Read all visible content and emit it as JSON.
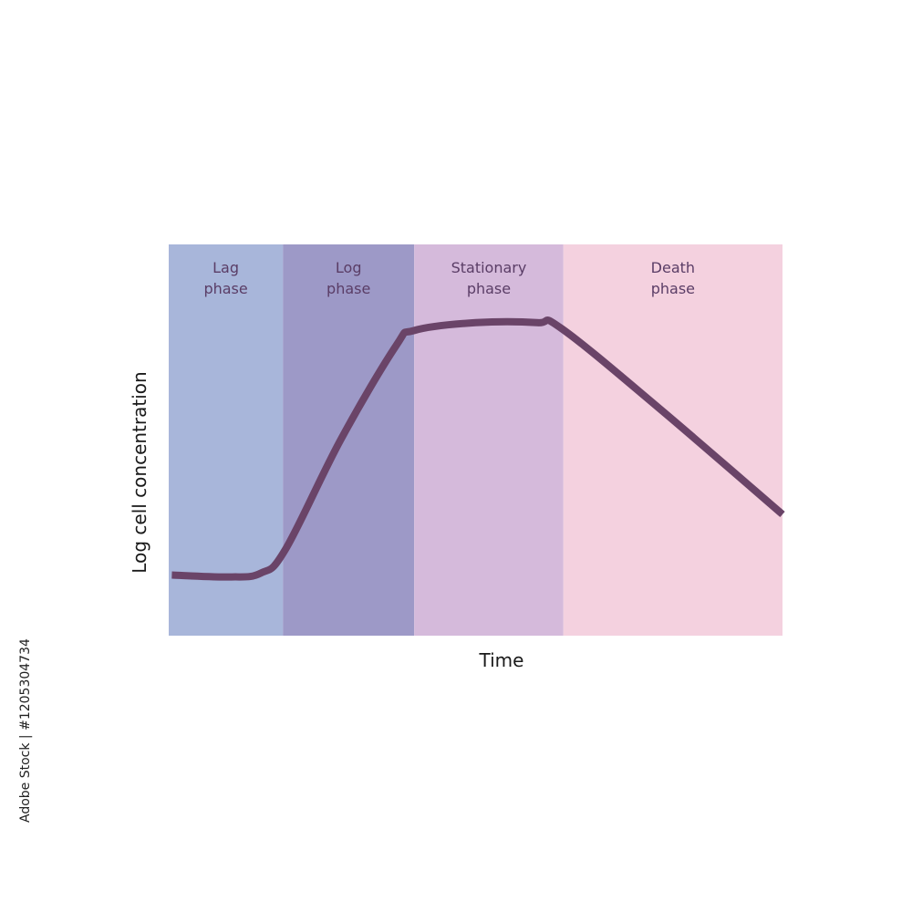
{
  "chart_data": {
    "type": "line",
    "xlabel": "Time",
    "ylabel": "Log cell concentration",
    "xlim": [
      0,
      10
    ],
    "ylim": [
      0,
      10
    ],
    "phases": [
      {
        "line1": "Lag",
        "line2": "phase",
        "x_start": 0,
        "x_end": 1.86,
        "color": "#a8b6da"
      },
      {
        "line1": "Log",
        "line2": "phase",
        "x_start": 1.86,
        "x_end": 4.0,
        "color": "#9d99c7"
      },
      {
        "line1": "Stationary",
        "line2": "phase",
        "x_start": 4.0,
        "x_end": 6.43,
        "color": "#d5badb"
      },
      {
        "line1": "Death",
        "line2": "phase",
        "x_start": 6.43,
        "x_end": 10,
        "color": "#f4d1df"
      }
    ],
    "series": [
      {
        "color": "#6a4468",
        "points": [
          [
            0.05,
            1.55
          ],
          [
            1.0,
            1.5
          ],
          [
            1.5,
            1.6
          ],
          [
            1.9,
            2.2
          ],
          [
            2.8,
            5.0
          ],
          [
            3.7,
            7.4
          ],
          [
            4.0,
            7.8
          ],
          [
            5.0,
            8.0
          ],
          [
            6.0,
            8.0
          ],
          [
            6.4,
            7.85
          ],
          [
            8.0,
            5.8
          ],
          [
            10.0,
            3.1
          ]
        ]
      }
    ]
  },
  "side_text": "Adobe Stock | #1205304734"
}
